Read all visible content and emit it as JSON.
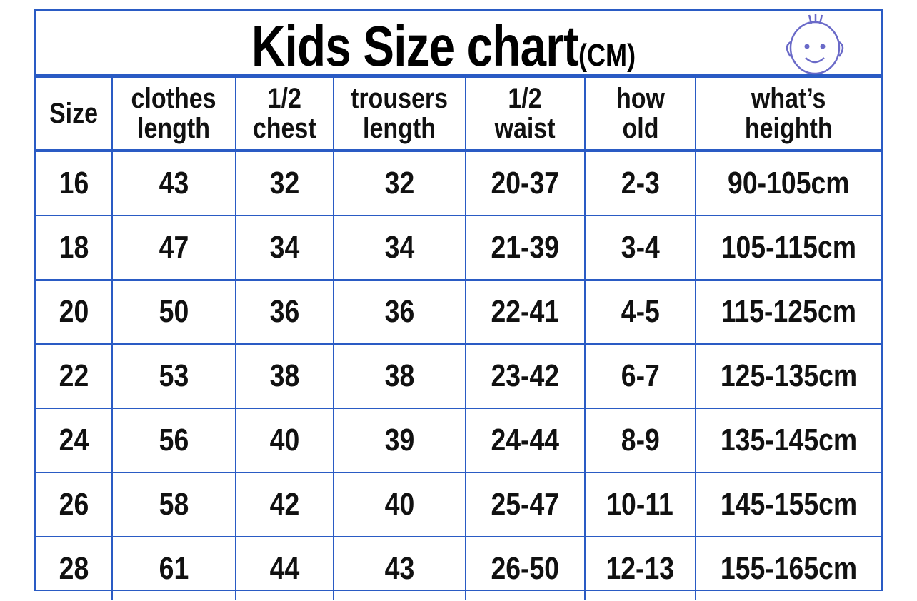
{
  "title": {
    "main": "Kids Size chart",
    "unit": "(CM)"
  },
  "icon": "baby-face-icon",
  "colors": {
    "border": "#2a5bc4",
    "text": "#000000",
    "icon": "#6a6ac8"
  },
  "columns": [
    [
      "Size"
    ],
    [
      "clothes",
      "length"
    ],
    [
      "1/2",
      "chest"
    ],
    [
      "trousers",
      "length"
    ],
    [
      "1/2",
      "waist"
    ],
    [
      "how",
      "old"
    ],
    [
      "what’s",
      "heighth"
    ]
  ],
  "rows": [
    [
      "16",
      "43",
      "32",
      "32",
      "20-37",
      "2-3",
      "90-105cm"
    ],
    [
      "18",
      "47",
      "34",
      "34",
      "21-39",
      "3-4",
      "105-115cm"
    ],
    [
      "20",
      "50",
      "36",
      "36",
      "22-41",
      "4-5",
      "115-125cm"
    ],
    [
      "22",
      "53",
      "38",
      "38",
      "23-42",
      "6-7",
      "125-135cm"
    ],
    [
      "24",
      "56",
      "40",
      "39",
      "24-44",
      "8-9",
      "135-145cm"
    ],
    [
      "26",
      "58",
      "42",
      "40",
      "25-47",
      "10-11",
      "145-155cm"
    ],
    [
      "28",
      "61",
      "44",
      "43",
      "26-50",
      "12-13",
      "155-165cm"
    ]
  ]
}
